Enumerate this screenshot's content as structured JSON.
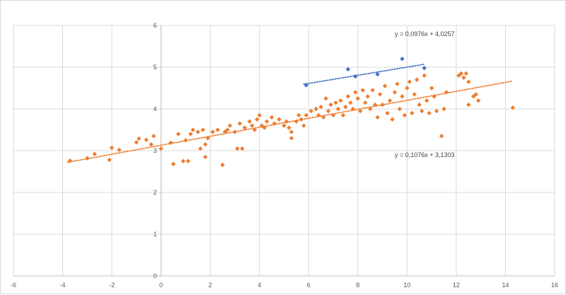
{
  "chart_data": {
    "type": "scatter",
    "title": "",
    "xlabel": "",
    "ylabel": "",
    "xlim": [
      -6,
      16
    ],
    "ylim": [
      0,
      6
    ],
    "x_ticks": [
      "-6",
      "-4",
      "-2",
      "0",
      "2",
      "4",
      "6",
      "8",
      "10",
      "12",
      "14",
      "16"
    ],
    "y_ticks": [
      "0",
      "1",
      "2",
      "3",
      "4",
      "5",
      "6"
    ],
    "grid": "vertical and horizontal",
    "series": [
      {
        "color": "#ED7D31",
        "trendline": {
          "slope": 0.1076,
          "intercept": 3.1303,
          "x_from": -3.8,
          "x_to": 14.3
        },
        "trendline_label": "y = 0,1076x + 3,1303",
        "points": [
          [
            -3.7,
            2.76
          ],
          [
            -3.0,
            2.82
          ],
          [
            -2.7,
            2.92
          ],
          [
            -2.1,
            2.78
          ],
          [
            -2.0,
            3.07
          ],
          [
            -1.7,
            3.02
          ],
          [
            -1.0,
            3.2
          ],
          [
            -0.9,
            3.29
          ],
          [
            -0.6,
            3.26
          ],
          [
            -0.4,
            3.15
          ],
          [
            -0.3,
            3.35
          ],
          [
            0.0,
            3.05
          ],
          [
            0.4,
            3.19
          ],
          [
            0.5,
            2.68
          ],
          [
            0.7,
            3.4
          ],
          [
            0.9,
            2.75
          ],
          [
            1.0,
            3.25
          ],
          [
            1.1,
            2.75
          ],
          [
            1.2,
            3.4
          ],
          [
            1.3,
            3.5
          ],
          [
            1.5,
            3.45
          ],
          [
            1.6,
            3.05
          ],
          [
            1.7,
            3.5
          ],
          [
            1.8,
            3.15
          ],
          [
            1.8,
            2.85
          ],
          [
            1.9,
            3.3
          ],
          [
            2.1,
            3.45
          ],
          [
            2.3,
            3.5
          ],
          [
            2.5,
            2.66
          ],
          [
            2.6,
            3.45
          ],
          [
            2.7,
            3.5
          ],
          [
            2.8,
            3.6
          ],
          [
            3.0,
            3.45
          ],
          [
            3.1,
            3.05
          ],
          [
            3.2,
            3.65
          ],
          [
            3.3,
            3.05
          ],
          [
            3.4,
            3.55
          ],
          [
            3.6,
            3.7
          ],
          [
            3.7,
            3.6
          ],
          [
            3.8,
            3.5
          ],
          [
            3.9,
            3.75
          ],
          [
            4.0,
            3.85
          ],
          [
            4.1,
            3.6
          ],
          [
            4.2,
            3.55
          ],
          [
            4.3,
            3.7
          ],
          [
            4.5,
            3.8
          ],
          [
            4.6,
            3.65
          ],
          [
            4.8,
            3.75
          ],
          [
            5.0,
            3.6
          ],
          [
            5.1,
            3.7
          ],
          [
            5.2,
            3.55
          ],
          [
            5.3,
            3.45
          ],
          [
            5.3,
            3.3
          ],
          [
            5.5,
            3.7
          ],
          [
            5.6,
            3.85
          ],
          [
            5.7,
            3.75
          ],
          [
            5.8,
            3.6
          ],
          [
            5.9,
            3.85
          ],
          [
            6.1,
            3.95
          ],
          [
            6.3,
            4.0
          ],
          [
            6.4,
            3.85
          ],
          [
            6.5,
            4.05
          ],
          [
            6.6,
            3.8
          ],
          [
            6.7,
            4.25
          ],
          [
            6.8,
            3.95
          ],
          [
            6.9,
            4.1
          ],
          [
            7.0,
            3.85
          ],
          [
            7.1,
            4.15
          ],
          [
            7.2,
            4.0
          ],
          [
            7.3,
            4.2
          ],
          [
            7.4,
            3.85
          ],
          [
            7.5,
            4.05
          ],
          [
            7.6,
            4.3
          ],
          [
            7.7,
            4.15
          ],
          [
            7.8,
            4.0
          ],
          [
            7.9,
            4.4
          ],
          [
            8.0,
            4.25
          ],
          [
            8.1,
            3.95
          ],
          [
            8.2,
            4.45
          ],
          [
            8.3,
            4.15
          ],
          [
            8.4,
            4.3
          ],
          [
            8.5,
            4.0
          ],
          [
            8.6,
            4.45
          ],
          [
            8.7,
            4.1
          ],
          [
            8.8,
            3.8
          ],
          [
            8.9,
            4.35
          ],
          [
            9.0,
            4.1
          ],
          [
            9.1,
            4.55
          ],
          [
            9.2,
            3.9
          ],
          [
            9.3,
            4.2
          ],
          [
            9.4,
            3.75
          ],
          [
            9.5,
            4.4
          ],
          [
            9.6,
            4.6
          ],
          [
            9.7,
            4.0
          ],
          [
            9.8,
            4.3
          ],
          [
            9.9,
            3.85
          ],
          [
            10.0,
            4.5
          ],
          [
            10.1,
            4.65
          ],
          [
            10.2,
            3.9
          ],
          [
            10.3,
            4.35
          ],
          [
            10.4,
            4.7
          ],
          [
            10.5,
            4.1
          ],
          [
            10.6,
            3.95
          ],
          [
            10.7,
            4.8
          ],
          [
            10.8,
            4.2
          ],
          [
            10.9,
            3.9
          ],
          [
            11.0,
            4.5
          ],
          [
            11.1,
            4.3
          ],
          [
            11.2,
            3.95
          ],
          [
            11.4,
            3.35
          ],
          [
            11.5,
            4.0
          ],
          [
            11.6,
            4.4
          ],
          [
            12.1,
            4.8
          ],
          [
            12.2,
            4.85
          ],
          [
            12.3,
            4.75
          ],
          [
            12.4,
            4.85
          ],
          [
            12.5,
            4.65
          ],
          [
            12.5,
            4.1
          ],
          [
            12.7,
            4.3
          ],
          [
            12.8,
            4.35
          ],
          [
            12.9,
            4.2
          ],
          [
            14.3,
            4.03
          ]
        ]
      },
      {
        "color": "#4472C4",
        "trendline": {
          "slope": 0.0976,
          "intercept": 4.0257,
          "x_from": 5.8,
          "x_to": 10.7
        },
        "trendline_label": "y = 0,0976x + 4,0257",
        "points": [
          [
            5.9,
            4.57
          ],
          [
            7.6,
            4.95
          ],
          [
            7.9,
            4.78
          ],
          [
            8.8,
            4.83
          ],
          [
            9.8,
            5.2
          ],
          [
            10.7,
            4.98
          ]
        ]
      }
    ]
  }
}
